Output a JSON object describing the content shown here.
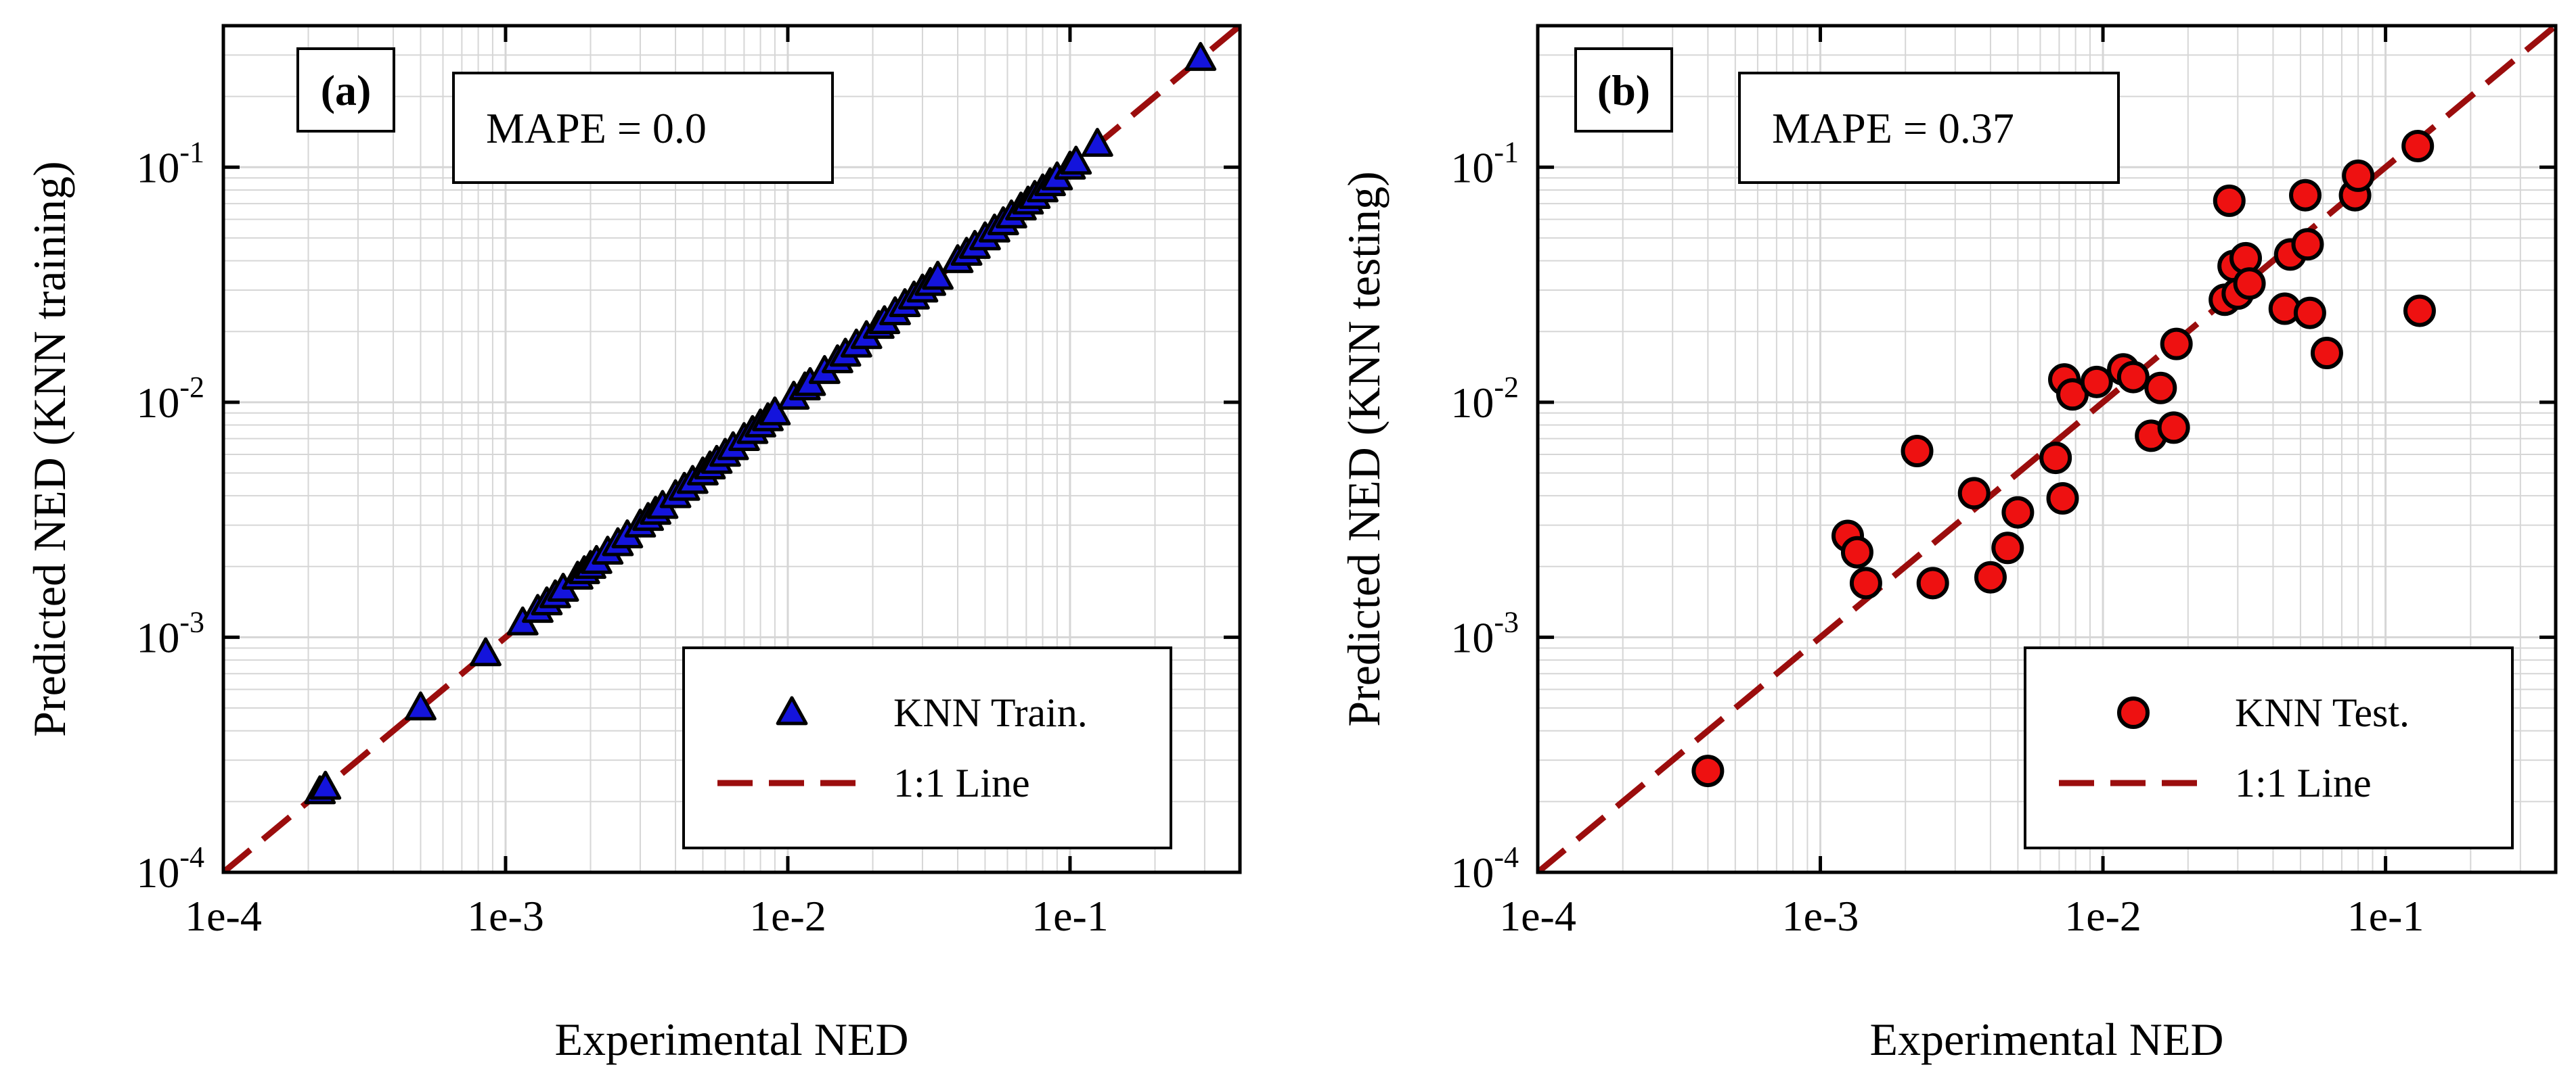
{
  "chart_data": [
    {
      "type": "scatter",
      "scale": "log-log",
      "panel_label": "(a)",
      "annotation": "MAPE = 0.0",
      "xlabel": "Experimental NED",
      "ylabel": "Predicted NED (KNN training)",
      "xlim": [
        0.0001,
        0.4
      ],
      "ylim": [
        0.0001,
        0.4
      ],
      "x_ticks": [
        0.0001,
        0.001,
        0.01,
        0.1
      ],
      "x_tick_labels": [
        "1e-4",
        "1e-3",
        "1e-2",
        "1e-1"
      ],
      "y_ticks": [
        0.0001,
        0.001,
        0.01,
        0.1
      ],
      "y_tick_labels": [
        {
          "base": "10",
          "exp": "-4"
        },
        {
          "base": "10",
          "exp": "-3"
        },
        {
          "base": "10",
          "exp": "-2"
        },
        {
          "base": "10",
          "exp": "-1"
        }
      ],
      "grid": true,
      "legend_position": "bottom-right",
      "series": [
        {
          "name": "KNN Train.",
          "marker": "triangle",
          "color": "#1414dc",
          "x": [
            0.00022,
            0.00023,
            0.0005,
            0.00085,
            0.00115,
            0.0013,
            0.0014,
            0.0015,
            0.0016,
            0.0018,
            0.0019,
            0.002,
            0.0021,
            0.0023,
            0.0025,
            0.0027,
            0.003,
            0.0032,
            0.0034,
            0.0036,
            0.004,
            0.0043,
            0.0046,
            0.005,
            0.0053,
            0.0056,
            0.006,
            0.0064,
            0.007,
            0.0075,
            0.008,
            0.0085,
            0.009,
            0.0105,
            0.0115,
            0.012,
            0.0135,
            0.015,
            0.016,
            0.0175,
            0.019,
            0.021,
            0.022,
            0.024,
            0.026,
            0.028,
            0.03,
            0.032,
            0.034,
            0.04,
            0.043,
            0.046,
            0.05,
            0.054,
            0.058,
            0.062,
            0.067,
            0.071,
            0.075,
            0.08,
            0.085,
            0.09,
            0.1,
            0.105,
            0.125,
            0.29
          ],
          "y": [
            0.00022,
            0.00023,
            0.0005,
            0.00085,
            0.00115,
            0.0013,
            0.0014,
            0.0015,
            0.0016,
            0.0018,
            0.0019,
            0.002,
            0.0021,
            0.0023,
            0.0025,
            0.0027,
            0.003,
            0.0032,
            0.0034,
            0.0036,
            0.004,
            0.0043,
            0.0046,
            0.005,
            0.0053,
            0.0056,
            0.006,
            0.0064,
            0.007,
            0.0075,
            0.008,
            0.0085,
            0.009,
            0.0105,
            0.0115,
            0.012,
            0.0135,
            0.015,
            0.016,
            0.0175,
            0.019,
            0.021,
            0.022,
            0.024,
            0.026,
            0.028,
            0.03,
            0.032,
            0.034,
            0.04,
            0.043,
            0.046,
            0.05,
            0.054,
            0.058,
            0.062,
            0.067,
            0.071,
            0.075,
            0.08,
            0.085,
            0.09,
            0.1,
            0.105,
            0.125,
            0.29
          ]
        },
        {
          "name": "1:1 Line",
          "style": "dashed",
          "color": "#9b0d0d",
          "x": [
            0.0001,
            0.4
          ],
          "y": [
            0.0001,
            0.4
          ]
        }
      ]
    },
    {
      "type": "scatter",
      "scale": "log-log",
      "panel_label": "(b)",
      "annotation": "MAPE = 0.37",
      "xlabel": "Experimental NED",
      "ylabel": "Predicted NED (KNN testing)",
      "xlim": [
        0.0001,
        0.4
      ],
      "ylim": [
        0.0001,
        0.4
      ],
      "x_ticks": [
        0.0001,
        0.001,
        0.01,
        0.1
      ],
      "x_tick_labels": [
        "1e-4",
        "1e-3",
        "1e-2",
        "1e-1"
      ],
      "y_ticks": [
        0.0001,
        0.001,
        0.01,
        0.1
      ],
      "y_tick_labels": [
        {
          "base": "10",
          "exp": "-4"
        },
        {
          "base": "10",
          "exp": "-3"
        },
        {
          "base": "10",
          "exp": "-2"
        },
        {
          "base": "10",
          "exp": "-1"
        }
      ],
      "grid": true,
      "legend_position": "bottom-right",
      "series": [
        {
          "name": "KNN Test.",
          "marker": "circle",
          "color": "#ee1111",
          "x": [
            0.0004,
            0.00125,
            0.00135,
            0.00145,
            0.0022,
            0.0025,
            0.0035,
            0.004,
            0.0046,
            0.005,
            0.0068,
            0.0072,
            0.0073,
            0.0078,
            0.0095,
            0.0118,
            0.0128,
            0.0148,
            0.016,
            0.0178,
            0.0182,
            0.027,
            0.028,
            0.029,
            0.03,
            0.032,
            0.033,
            0.044,
            0.046,
            0.052,
            0.053,
            0.054,
            0.062,
            0.078,
            0.08,
            0.13,
            0.132
          ],
          "y": [
            0.00027,
            0.0027,
            0.0023,
            0.0017,
            0.0062,
            0.0017,
            0.0041,
            0.0018,
            0.0024,
            0.0034,
            0.0058,
            0.0039,
            0.0125,
            0.0108,
            0.0122,
            0.0138,
            0.0128,
            0.0072,
            0.0115,
            0.0078,
            0.0177,
            0.0273,
            0.072,
            0.038,
            0.029,
            0.041,
            0.032,
            0.025,
            0.0425,
            0.076,
            0.047,
            0.024,
            0.0162,
            0.076,
            0.092,
            0.123,
            0.0245
          ]
        },
        {
          "name": "1:1 Line",
          "style": "dashed",
          "color": "#9b0d0d",
          "x": [
            0.0001,
            0.4
          ],
          "y": [
            0.0001,
            0.4
          ]
        }
      ]
    }
  ]
}
